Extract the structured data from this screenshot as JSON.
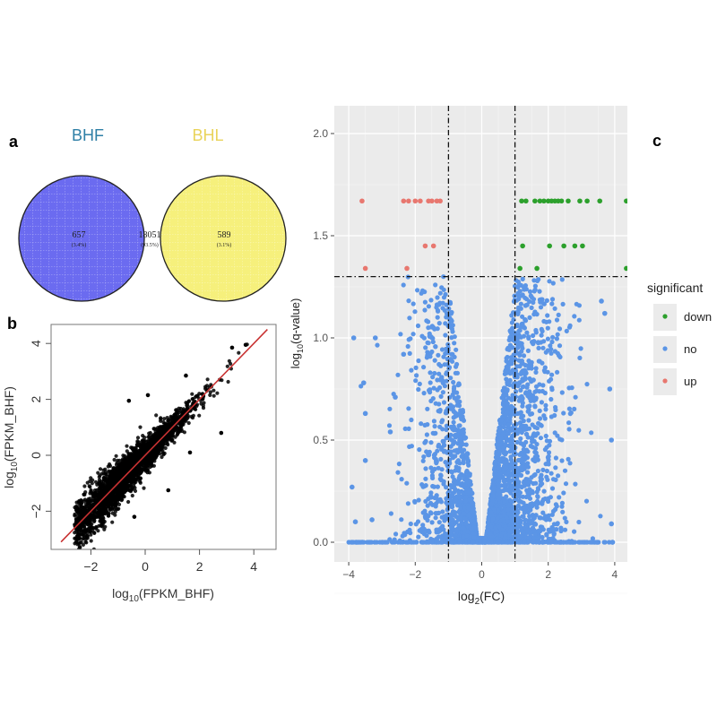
{
  "panel_labels": {
    "a": "a",
    "b": "b",
    "c": "c"
  },
  "chart_data": [
    {
      "type": "venn",
      "sets": [
        {
          "name": "BHF",
          "color": "#6b6bf0",
          "label_color": "#2e7fa6"
        },
        {
          "name": "BHL",
          "color": "#f6f07c",
          "label_color": "#e9d35a"
        }
      ],
      "regions": [
        {
          "id": "bhf_only",
          "count": "657",
          "percent": "(3.4%)"
        },
        {
          "id": "both",
          "count": "18051",
          "percent": "(93.5%)"
        },
        {
          "id": "bhl_only",
          "count": "589",
          "percent": "(3.1%)"
        }
      ],
      "overlap_color": "#aba56a"
    },
    {
      "type": "scatter",
      "xlabel": {
        "base": "log",
        "sub": "10",
        "rest": "(FPKM_BHF)"
      },
      "ylabel": {
        "base": "log",
        "sub": "10",
        "rest": "(FPKM_BHF)"
      },
      "xlim": [
        -3.45,
        4.8
      ],
      "ylim": [
        -3.4,
        4.7
      ],
      "xticks": [
        "-2",
        "0",
        "2",
        "4"
      ],
      "yticks": [
        "-2",
        "0",
        "2",
        "4"
      ],
      "point_color": "#000000",
      "fit_line": {
        "color": "#c83232",
        "x": [
          -3.1,
          4.5
        ],
        "y": [
          -3.1,
          4.5
        ]
      },
      "outliers": [
        [
          -0.6,
          1.95
        ],
        [
          0.1,
          2.15
        ],
        [
          1.5,
          2.85
        ],
        [
          2.8,
          0.8
        ],
        [
          1.65,
          0.1
        ],
        [
          0.85,
          -1.25
        ],
        [
          -0.4,
          -2.2
        ],
        [
          3.7,
          3.95
        ],
        [
          3.2,
          3.85
        ]
      ],
      "grid": false
    },
    {
      "type": "scatter",
      "xlabel": {
        "base": "log",
        "sub": "2",
        "rest": "(FC)"
      },
      "ylabel": {
        "base": "log",
        "sub": "10",
        "rest": "(q-value)"
      },
      "xlim": [
        -4.5,
        4.4
      ],
      "ylim": [
        -0.1,
        2.1
      ],
      "xticks": [
        "-4",
        "-2",
        "0",
        "2",
        "4"
      ],
      "yticks": [
        "0.0",
        "0.5",
        "1.0",
        "1.5",
        "2.0"
      ],
      "thresholds": {
        "x": [
          -1,
          1
        ],
        "y": 1.3
      },
      "grid": true,
      "legend": {
        "title": "significant",
        "placement": "right",
        "entries": [
          {
            "label": "down",
            "color": "#2ca02c"
          },
          {
            "label": "no",
            "color": "#5b95e6"
          },
          {
            "label": "up",
            "color": "#e8776f"
          }
        ]
      },
      "series": [
        {
          "name": "up",
          "points": [
            [
              -3.6,
              1.67
            ],
            [
              -2.35,
              1.67
            ],
            [
              -2.2,
              1.67
            ],
            [
              -2.0,
              1.67
            ],
            [
              -1.85,
              1.67
            ],
            [
              -1.6,
              1.67
            ],
            [
              -1.5,
              1.67
            ],
            [
              -1.35,
              1.67
            ],
            [
              -1.25,
              1.67
            ],
            [
              -1.7,
              1.45
            ],
            [
              -1.45,
              1.45
            ],
            [
              -3.5,
              1.34
            ],
            [
              -2.25,
              1.34
            ]
          ]
        },
        {
          "name": "down",
          "points": [
            [
              1.2,
              1.67
            ],
            [
              1.33,
              1.67
            ],
            [
              1.6,
              1.67
            ],
            [
              1.75,
              1.67
            ],
            [
              1.87,
              1.67
            ],
            [
              2.0,
              1.67
            ],
            [
              2.1,
              1.67
            ],
            [
              2.2,
              1.67
            ],
            [
              2.3,
              1.67
            ],
            [
              2.4,
              1.67
            ],
            [
              2.6,
              1.67
            ],
            [
              2.95,
              1.67
            ],
            [
              3.17,
              1.67
            ],
            [
              3.55,
              1.67
            ],
            [
              4.35,
              1.67
            ],
            [
              1.23,
              1.45
            ],
            [
              2.04,
              1.45
            ],
            [
              2.47,
              1.45
            ],
            [
              2.8,
              1.45
            ],
            [
              3.03,
              1.45
            ],
            [
              1.15,
              1.34
            ],
            [
              1.66,
              1.34
            ],
            [
              4.35,
              1.34
            ]
          ]
        },
        {
          "name": "no",
          "points": [
            [
              -3.85,
              1.0
            ],
            [
              -3.2,
              1.0
            ],
            [
              -3.55,
              0.78
            ],
            [
              -3.5,
              0.63
            ],
            [
              -3.5,
              0.4
            ],
            [
              -2.75,
              0.54
            ],
            [
              -2.35,
              0.92
            ],
            [
              -2.6,
              0.71
            ],
            [
              -3.9,
              0.27
            ],
            [
              -3.8,
              0.1
            ],
            [
              -3.3,
              0.11
            ],
            [
              3.7,
              1.12
            ],
            [
              3.6,
              1.18
            ],
            [
              3.9,
              0.5
            ],
            [
              3.85,
              0.75
            ],
            [
              3.9,
              0.09
            ]
          ]
        }
      ]
    }
  ]
}
